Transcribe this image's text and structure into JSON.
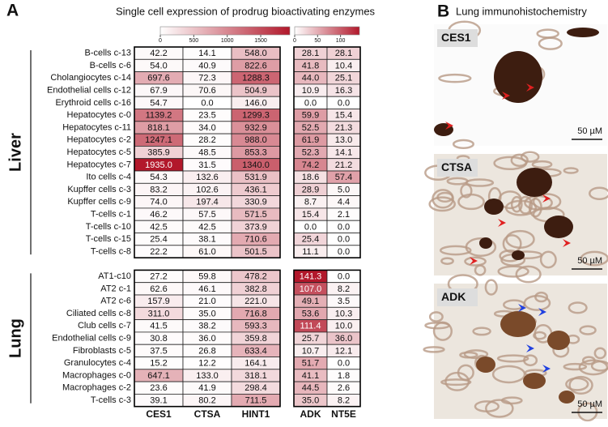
{
  "chart_data": {
    "type": "heatmap",
    "panel_label": "A",
    "title": "Single cell expression of prodrug bioactivating enzymes",
    "groups": [
      {
        "name": "Liver",
        "rows": [
          "B-cells c-13",
          "B-cells c-6",
          "Cholangiocytes c-14",
          "Endothelial cells c-12",
          "Erythroid cells c-16",
          "Hepatocytes c-0",
          "Hepatocytes c-11",
          "Hepatocytes c-2",
          "Hepatocytes c-5",
          "Hepatocytes c-7",
          "Ito cells c-4",
          "Kupffer cells c-3",
          "Kupffer cells c-9",
          "T-cells c-1",
          "T-cells c-10",
          "T-cells c-15",
          "T-cells c-8"
        ]
      },
      {
        "name": "Lung",
        "rows": [
          "AT1-c10",
          "AT2 c-1",
          "AT2 c-6",
          "Ciliated cells c-8",
          "Club cells c-7",
          "Endothelial cells c-9",
          "Fibroblasts c-5",
          "Granulocytes c-4",
          "Macrophages c-0",
          "Macrophages c-2",
          "T-cells c-3"
        ]
      }
    ],
    "tables": [
      {
        "columns": [
          "CES1",
          "CTSA",
          "HINT1"
        ],
        "color": "#b2182b",
        "clim": [
          0,
          1935
        ],
        "cticks": [
          0,
          500,
          1000,
          1500
        ],
        "values": [
          [
            [
              42.2,
              14.1,
              548.0
            ],
            [
              54.0,
              40.9,
              822.6
            ],
            [
              697.6,
              72.3,
              1288.3
            ],
            [
              67.9,
              70.6,
              504.9
            ],
            [
              54.7,
              0.0,
              146.0
            ],
            [
              1139.2,
              23.5,
              1299.3
            ],
            [
              818.1,
              34.0,
              932.9
            ],
            [
              1247.1,
              28.2,
              988.0
            ],
            [
              385.9,
              48.5,
              853.3
            ],
            [
              1935.0,
              31.5,
              1340.0
            ],
            [
              54.3,
              132.6,
              531.9
            ],
            [
              83.2,
              102.6,
              436.1
            ],
            [
              74.0,
              197.4,
              330.9
            ],
            [
              46.2,
              57.5,
              571.5
            ],
            [
              42.5,
              42.5,
              373.9
            ],
            [
              25.4,
              38.1,
              710.6
            ],
            [
              22.2,
              61.0,
              501.5
            ]
          ],
          [
            [
              27.2,
              59.8,
              478.2
            ],
            [
              62.6,
              46.1,
              382.8
            ],
            [
              157.9,
              21.0,
              221.0
            ],
            [
              311.0,
              35.0,
              716.8
            ],
            [
              41.5,
              38.2,
              593.3
            ],
            [
              30.8,
              36.0,
              359.8
            ],
            [
              37.5,
              26.8,
              633.4
            ],
            [
              15.2,
              12.2,
              164.1
            ],
            [
              647.1,
              133.0,
              318.1
            ],
            [
              23.6,
              41.9,
              298.4
            ],
            [
              39.1,
              80.2,
              711.5
            ]
          ]
        ],
        "value_labels": [
          [
            [
              "42.2",
              "14.1",
              "548.0"
            ],
            [
              "54.0",
              "40.9",
              "822.6"
            ],
            [
              "697.6",
              "72.3",
              "1288.3"
            ],
            [
              "67.9",
              "70.6",
              "504.9"
            ],
            [
              "54.7",
              "0.0",
              "146.0"
            ],
            [
              "1139.2",
              "23.5",
              "1299.3"
            ],
            [
              "818.1",
              "34.0",
              "932.9"
            ],
            [
              "1247.1",
              "28.2",
              "988.0"
            ],
            [
              "385.9",
              "48.5",
              "853.3"
            ],
            [
              "1935.0",
              "31.5",
              "1340.0"
            ],
            [
              "54.3",
              "132.6",
              "531.9"
            ],
            [
              "83.2",
              "102.6",
              "436.1"
            ],
            [
              "74.0",
              "197.4",
              "330.9"
            ],
            [
              "46.2",
              "57.5",
              "571.5"
            ],
            [
              "42.5",
              "42.5",
              "373.9"
            ],
            [
              "25.4",
              "38.1",
              "710.6"
            ],
            [
              "22.2",
              "61.0",
              "501.5"
            ]
          ],
          [
            [
              "27.2",
              "59.8",
              "478.2"
            ],
            [
              "62.6",
              "46.1",
              "382.8"
            ],
            [
              "157.9",
              "21.0",
              "221.0"
            ],
            [
              "311.0",
              "35.0",
              "716.8"
            ],
            [
              "41.5",
              "38.2",
              "593.3"
            ],
            [
              "30.8",
              "36.0",
              "359.8"
            ],
            [
              "37.5",
              "26.8",
              "633.4"
            ],
            [
              "15.2",
              "12.2",
              "164.1"
            ],
            [
              "647.1",
              "133.0",
              "318.1"
            ],
            [
              "23.6",
              "41.9",
              "298.4"
            ],
            [
              "39.1",
              "80.2",
              "711.5"
            ]
          ]
        ]
      },
      {
        "columns": [
          "ADK",
          "NT5E"
        ],
        "color": "#b2182b",
        "clim": [
          0,
          141.3
        ],
        "cticks": [
          0,
          50,
          100
        ],
        "values": [
          [
            [
              28.1,
              28.1
            ],
            [
              41.8,
              10.4
            ],
            [
              44.0,
              25.1
            ],
            [
              10.9,
              16.3
            ],
            [
              0.0,
              0.0
            ],
            [
              59.9,
              15.4
            ],
            [
              52.5,
              21.3
            ],
            [
              61.9,
              13.0
            ],
            [
              52.3,
              14.1
            ],
            [
              74.2,
              21.2
            ],
            [
              18.6,
              57.4
            ],
            [
              28.9,
              5.0
            ],
            [
              8.7,
              4.4
            ],
            [
              15.4,
              2.1
            ],
            [
              0.0,
              0.0
            ],
            [
              25.4,
              0.0
            ],
            [
              11.1,
              0.0
            ]
          ],
          [
            [
              141.3,
              0.0
            ],
            [
              107.0,
              8.2
            ],
            [
              49.1,
              3.5
            ],
            [
              53.6,
              10.3
            ],
            [
              111.4,
              10.0
            ],
            [
              25.7,
              36.0
            ],
            [
              10.7,
              12.1
            ],
            [
              51.7,
              0.0
            ],
            [
              41.1,
              1.8
            ],
            [
              44.5,
              2.6
            ],
            [
              35.0,
              8.2
            ]
          ]
        ],
        "value_labels": [
          [
            [
              "28.1",
              "28.1"
            ],
            [
              "41.8",
              "10.4"
            ],
            [
              "44.0",
              "25.1"
            ],
            [
              "10.9",
              "16.3"
            ],
            [
              "0.0",
              "0.0"
            ],
            [
              "59.9",
              "15.4"
            ],
            [
              "52.5",
              "21.3"
            ],
            [
              "61.9",
              "13.0"
            ],
            [
              "52.3",
              "14.1"
            ],
            [
              "74.2",
              "21.2"
            ],
            [
              "18.6",
              "57.4"
            ],
            [
              "28.9",
              "5.0"
            ],
            [
              "8.7",
              "4.4"
            ],
            [
              "15.4",
              "2.1"
            ],
            [
              "0.0",
              "0.0"
            ],
            [
              "25.4",
              "0.0"
            ],
            [
              "11.1",
              "0.0"
            ]
          ],
          [
            [
              "141.3",
              "0.0"
            ],
            [
              "107.0",
              "8.2"
            ],
            [
              "49.1",
              "3.5"
            ],
            [
              "53.6",
              "10.3"
            ],
            [
              "111.4",
              "10.0"
            ],
            [
              "25.7",
              "36.0"
            ],
            [
              "10.7",
              "12.1"
            ],
            [
              "51.7",
              "0.0"
            ],
            [
              "41.1",
              "1.8"
            ],
            [
              "44.5",
              "2.6"
            ],
            [
              "35.0",
              "8.2"
            ]
          ]
        ]
      }
    ]
  },
  "panel_b": {
    "label": "B",
    "title": "Lung immunohistochemistry",
    "images": [
      {
        "label": "CES1",
        "scale": "50 µM"
      },
      {
        "label": "CTSA",
        "scale": "50 µM"
      },
      {
        "label": "ADK",
        "scale": "50 µM"
      }
    ]
  }
}
